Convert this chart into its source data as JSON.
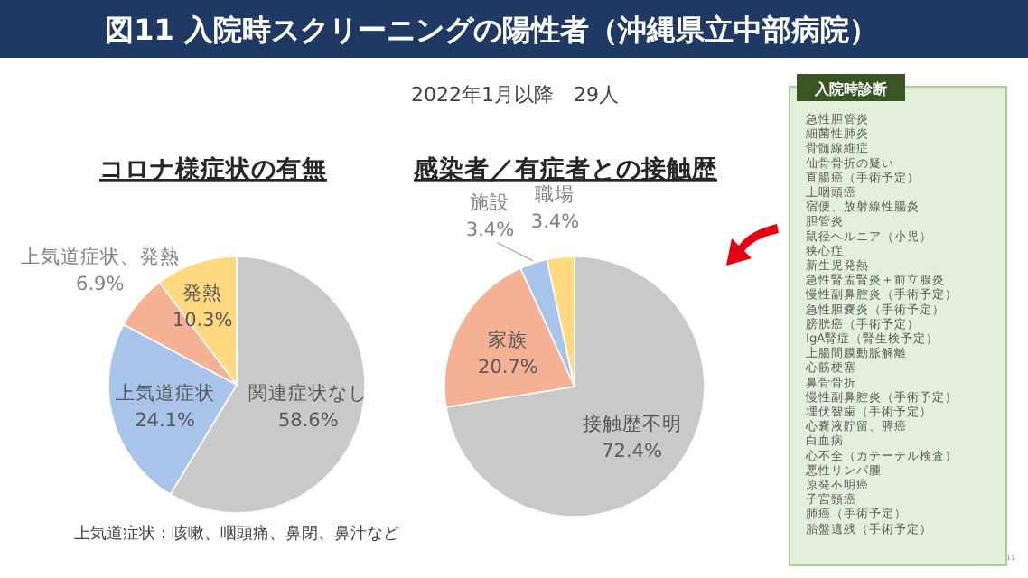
{
  "chart_data": [
    {
      "type": "other",
      "title": "図11 入院時スクリーニングの陽性者（沖縄県立中部病院）",
      "subtitle": "2022年1月以降　29人",
      "annotations": [
        "11"
      ]
    },
    {
      "type": "pie",
      "title": "コロナ様症状の有無",
      "categories": [
        "関連症状なし",
        "上気道症状",
        "上気道症状、発熱",
        "発熱"
      ],
      "values": [
        58.6,
        24.1,
        6.9,
        10.3
      ],
      "colors": [
        "#c9c9c9",
        "#a9c4ea",
        "#f4b194",
        "#ffd87f"
      ],
      "value_labels": [
        "58.6%",
        "24.1%",
        "6.9%",
        "10.3%"
      ],
      "annotations": [
        "上気道症状：咳嗽、咽頭痛、鼻閉、鼻汁など"
      ]
    },
    {
      "type": "pie",
      "title": "感染者／有症者との接触歴",
      "categories": [
        "接触歴不明",
        "家族",
        "施設",
        "職場"
      ],
      "values": [
        72.4,
        20.7,
        3.4,
        3.4
      ],
      "colors": [
        "#c9c9c9",
        "#f4b194",
        "#a9c4ea",
        "#ffd87f"
      ],
      "value_labels": [
        "72.4%",
        "20.7%",
        "3.4%",
        "3.4%"
      ]
    },
    {
      "type": "other",
      "title": "入院時診断",
      "annotations": [
        "急性胆管炎",
        "細菌性肺炎",
        "骨髄線維症",
        "仙骨骨折の疑い",
        "直腸癌（手術予定）",
        "上咽頭癌",
        "宿便、放射線性腸炎",
        "胆管炎",
        "鼠径ヘルニア（小児）",
        "狭心症",
        "新生児発熱",
        "急性腎盂腎炎＋前立腺炎",
        "慢性副鼻腔炎（手術予定）",
        "急性胆嚢炎（手術予定）",
        "膀胱癌（手術予定）",
        "IgA腎症（腎生検予定）",
        "上腸間膜動脈解離",
        "心筋梗塞",
        "鼻骨骨折",
        "慢性副鼻腔炎（手術予定）",
        "埋伏智歯（手術予定）",
        "心嚢液貯留、膵癌",
        "白血病",
        "心不全（カテーテル検査）",
        "悪性リンパ腫",
        "原発不明癌",
        "子宮頸癌",
        "肺癌（手術予定）",
        "胎盤遺残（手術予定）"
      ]
    }
  ]
}
